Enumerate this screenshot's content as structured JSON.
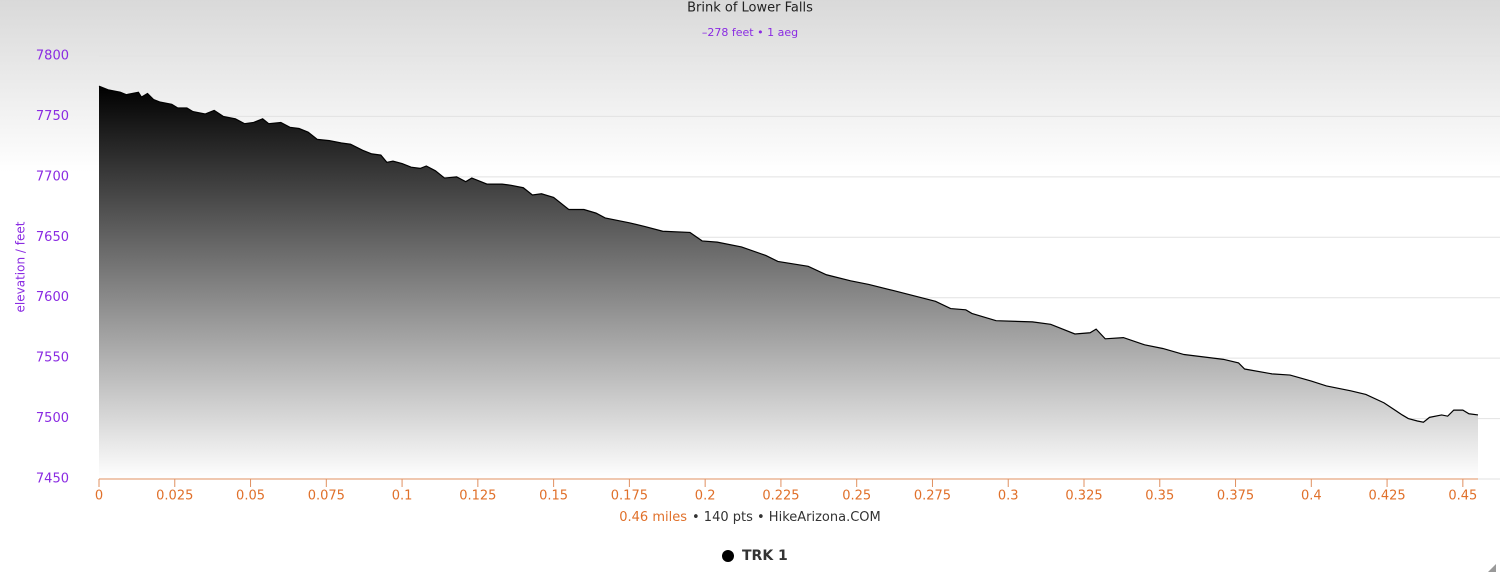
{
  "chart_data": {
    "type": "area",
    "title": "Brink of Lower Falls",
    "subtitle": "–278 feet • 1 aeg",
    "y_label": "elevation / feet",
    "x_label_distance": "0.46 miles",
    "x_label_rest": "• 140 pts • HikeArizona.COM",
    "x": [
      0,
      0.003,
      0.007,
      0.009,
      0.013,
      0.014,
      0.016,
      0.018,
      0.02,
      0.024,
      0.026,
      0.029,
      0.031,
      0.035,
      0.038,
      0.041,
      0.045,
      0.048,
      0.051,
      0.054,
      0.056,
      0.06,
      0.063,
      0.066,
      0.069,
      0.072,
      0.076,
      0.08,
      0.083,
      0.087,
      0.09,
      0.093,
      0.095,
      0.097,
      0.1,
      0.103,
      0.106,
      0.108,
      0.111,
      0.114,
      0.118,
      0.121,
      0.123,
      0.125,
      0.128,
      0.133,
      0.136,
      0.14,
      0.143,
      0.146,
      0.15,
      0.155,
      0.16,
      0.164,
      0.167,
      0.175,
      0.18,
      0.186,
      0.195,
      0.199,
      0.204,
      0.212,
      0.22,
      0.224,
      0.234,
      0.24,
      0.248,
      0.254,
      0.262,
      0.276,
      0.281,
      0.286,
      0.288,
      0.296,
      0.308,
      0.314,
      0.322,
      0.327,
      0.329,
      0.332,
      0.338,
      0.345,
      0.351,
      0.358,
      0.371,
      0.376,
      0.378,
      0.387,
      0.393,
      0.4,
      0.405,
      0.413,
      0.418,
      0.424,
      0.43,
      0.432,
      0.435,
      0.437,
      0.439,
      0.443,
      0.445,
      0.447,
      0.45,
      0.452,
      0.455
    ],
    "series": [
      {
        "name": "TRK 1",
        "color": "#000000",
        "values": [
          7775,
          7772,
          7770,
          7768,
          7770,
          7766,
          7769,
          7764,
          7762,
          7760,
          7757,
          7757,
          7754,
          7752,
          7755,
          7750,
          7748,
          7744,
          7745,
          7748,
          7744,
          7745,
          7741,
          7740,
          7737,
          7731,
          7730,
          7728,
          7727,
          7722,
          7719,
          7718,
          7712,
          7713,
          7711,
          7708,
          7707,
          7709,
          7705,
          7699,
          7700,
          7696,
          7699,
          7697,
          7694,
          7694,
          7693,
          7691,
          7685,
          7686,
          7683,
          7673,
          7673,
          7670,
          7666,
          7662,
          7659,
          7655,
          7654,
          7647,
          7646,
          7642,
          7635,
          7630,
          7626,
          7619,
          7614,
          7611,
          7606,
          7597,
          7591,
          7590,
          7587,
          7581,
          7580,
          7578,
          7570,
          7571,
          7574,
          7566,
          7567,
          7561,
          7558,
          7553,
          7549,
          7546,
          7541,
          7537,
          7536,
          7531,
          7527,
          7523,
          7520,
          7513,
          7503,
          7500,
          7498,
          7497,
          7501,
          7503,
          7502,
          7507,
          7507,
          7504,
          7503
        ]
      }
    ],
    "xlim": [
      0,
      0.455
    ],
    "ylim": [
      7450,
      7800
    ],
    "xticks": [
      0,
      0.025,
      0.05,
      0.075,
      0.1,
      0.125,
      0.15,
      0.175,
      0.2,
      0.225,
      0.25,
      0.275,
      0.3,
      0.325,
      0.35,
      0.375,
      0.4,
      0.425,
      0.45
    ],
    "yticks": [
      7450,
      7500,
      7550,
      7600,
      7650,
      7700,
      7750,
      7800
    ],
    "grid": true,
    "legend": "bottom"
  }
}
